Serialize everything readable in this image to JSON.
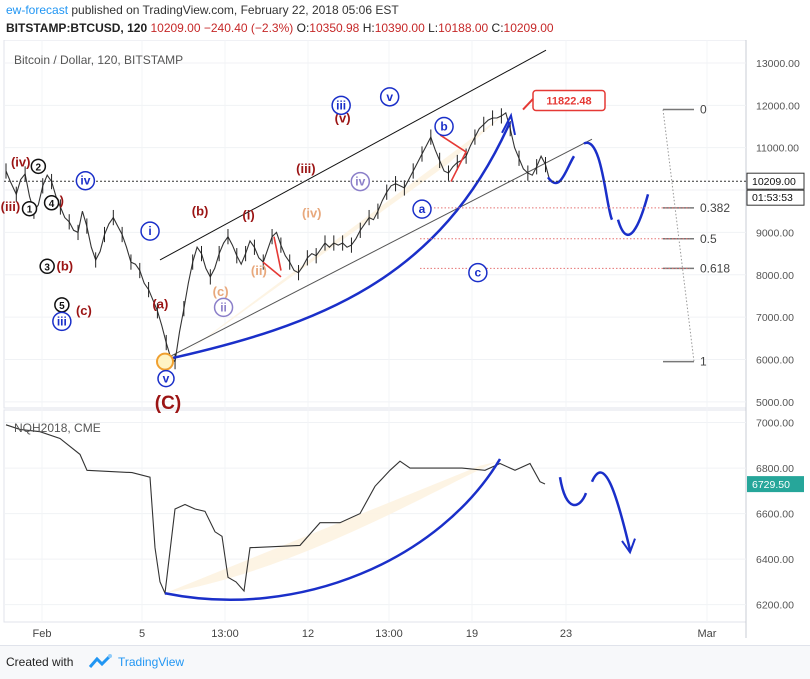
{
  "header": {
    "author": "ew-forecast",
    "published_text": " published on TradingView.com, February 22, 2018 05:06 EST",
    "symbol": "BITSTAMP:BTCUSD, 120",
    "last": "10209.00",
    "change": "−240.40 (−2.3%)",
    "o_label": "O:",
    "o_value": "10350.98",
    "h_label": "H:",
    "h_value": "10390.00",
    "l_label": "L:",
    "l_value": "10188.00",
    "c_label": "C:",
    "c_value": "10209.00"
  },
  "footer": {
    "created_label": "Created with",
    "brand": "TradingView"
  },
  "colors": {
    "wave_blue": "#1a2fc9",
    "wave_red": "#9b1414",
    "wave_orange": "#e8a87c",
    "wave_purple": "#8b7fc9",
    "target_red": "#e53935",
    "fill": "#fdf3e1"
  },
  "chart_data": [
    {
      "type": "line",
      "title": "Bitcoin / Dollar, 120, BITSTAMP",
      "y_ticks": [
        "13000.00",
        "12000.00",
        "11000.00",
        "10000.00",
        "9000.00",
        "8000.00",
        "7000.00",
        "6000.00",
        "5000.00"
      ],
      "y_tick_values": [
        13000,
        12000,
        11000,
        10000,
        9000,
        8000,
        7000,
        6000,
        5000
      ],
      "ylim": [
        4950,
        13400
      ],
      "x_ticks": [
        "Feb",
        "5",
        "13:00",
        "12",
        "13:00",
        "19",
        "23",
        "Mar"
      ],
      "last_price_label": "10209.00",
      "countdown_label": "01:53:53",
      "last_price": 10209,
      "target_label": "11822.48",
      "target_value": 11822.48,
      "price_path": [
        [
          0,
          10450
        ],
        [
          3,
          10200
        ],
        [
          7,
          9900
        ],
        [
          10,
          10250
        ],
        [
          13,
          10380
        ],
        [
          16,
          9850
        ],
        [
          19,
          9500
        ],
        [
          22,
          9650
        ],
        [
          25,
          10100
        ],
        [
          28,
          10350
        ],
        [
          31,
          10200
        ],
        [
          34,
          9850
        ],
        [
          37,
          9600
        ],
        [
          40,
          9350
        ],
        [
          43,
          9250
        ],
        [
          46,
          9050
        ],
        [
          49,
          9000
        ],
        [
          52,
          9500
        ],
        [
          55,
          9150
        ],
        [
          58,
          8650
        ],
        [
          61,
          8350
        ],
        [
          64,
          8550
        ],
        [
          67,
          8950
        ],
        [
          70,
          9200
        ],
        [
          73,
          9350
        ],
        [
          76,
          9150
        ],
        [
          79,
          8950
        ],
        [
          82,
          8650
        ],
        [
          85,
          8300
        ],
        [
          88,
          8250
        ],
        [
          91,
          8100
        ],
        [
          94,
          7800
        ],
        [
          97,
          7650
        ],
        [
          100,
          7400
        ],
        [
          103,
          7150
        ],
        [
          106,
          6800
        ],
        [
          109,
          6400
        ],
        [
          112,
          6050
        ],
        [
          115,
          5950
        ],
        [
          118,
          6650
        ],
        [
          121,
          7200
        ],
        [
          124,
          7800
        ],
        [
          127,
          8300
        ],
        [
          130,
          8650
        ],
        [
          133,
          8500
        ],
        [
          136,
          8150
        ],
        [
          139,
          7950
        ],
        [
          142,
          8150
        ],
        [
          145,
          8500
        ],
        [
          148,
          8750
        ],
        [
          151,
          8900
        ],
        [
          154,
          8700
        ],
        [
          157,
          8450
        ],
        [
          160,
          8250
        ],
        [
          163,
          8500
        ],
        [
          166,
          8800
        ],
        [
          169,
          8650
        ],
        [
          172,
          8400
        ],
        [
          175,
          8300
        ],
        [
          178,
          8600
        ],
        [
          181,
          8900
        ],
        [
          184,
          9000
        ],
        [
          187,
          8700
        ],
        [
          190,
          8450
        ],
        [
          193,
          8300
        ],
        [
          196,
          8100
        ],
        [
          199,
          8050
        ],
        [
          202,
          8200
        ],
        [
          205,
          8400
        ],
        [
          208,
          8500
        ],
        [
          211,
          8450
        ],
        [
          214,
          8600
        ],
        [
          217,
          8750
        ],
        [
          220,
          8650
        ],
        [
          223,
          8750
        ],
        [
          226,
          8700
        ],
        [
          229,
          8750
        ],
        [
          232,
          8650
        ],
        [
          235,
          8700
        ],
        [
          238,
          8850
        ],
        [
          241,
          9050
        ],
        [
          244,
          9200
        ],
        [
          247,
          9350
        ],
        [
          250,
          9300
        ],
        [
          253,
          9500
        ],
        [
          256,
          9750
        ],
        [
          259,
          9950
        ],
        [
          262,
          10100
        ],
        [
          265,
          10150
        ],
        [
          268,
          10100
        ],
        [
          271,
          10050
        ],
        [
          274,
          10250
        ],
        [
          277,
          10450
        ],
        [
          280,
          10650
        ],
        [
          283,
          10850
        ],
        [
          286,
          11050
        ],
        [
          289,
          11250
        ],
        [
          292,
          10950
        ],
        [
          295,
          10700
        ],
        [
          298,
          10450
        ],
        [
          301,
          10400
        ],
        [
          304,
          10550
        ],
        [
          307,
          10650
        ],
        [
          310,
          10700
        ],
        [
          313,
          10800
        ],
        [
          316,
          11050
        ],
        [
          319,
          11250
        ],
        [
          322,
          11450
        ],
        [
          325,
          11550
        ],
        [
          328,
          11650
        ],
        [
          331,
          11700
        ],
        [
          334,
          11700
        ],
        [
          337,
          11750
        ],
        [
          340,
          11822
        ],
        [
          343,
          11450
        ],
        [
          346,
          11000
        ],
        [
          349,
          10750
        ],
        [
          352,
          10500
        ],
        [
          355,
          10400
        ],
        [
          358,
          10350
        ],
        [
          361,
          10550
        ],
        [
          364,
          10800
        ],
        [
          367,
          10600
        ],
        [
          370,
          10209
        ]
      ],
      "series_markers": [
        {
          "text": "(iv)",
          "x": 10,
          "y": 10550,
          "color": "wave_red",
          "weight": "bold"
        },
        {
          "text": "(iii)",
          "x": 3,
          "y": 9500,
          "color": "wave_red",
          "weight": "bold"
        },
        {
          "text": "(a)",
          "x": 34,
          "y": 9650,
          "color": "wave_red",
          "weight": "bold"
        },
        {
          "text": "(b)",
          "x": 40,
          "y": 8100,
          "color": "wave_red",
          "weight": "bold"
        },
        {
          "text": "(a)",
          "x": 105,
          "y": 7200,
          "color": "wave_red",
          "weight": "bold"
        },
        {
          "text": "(b)",
          "x": 132,
          "y": 9400,
          "color": "wave_red",
          "weight": "bold"
        },
        {
          "text": "(i)",
          "x": 165,
          "y": 9300,
          "color": "wave_red",
          "weight": "bold"
        },
        {
          "text": "(iii)",
          "x": 204,
          "y": 10400,
          "color": "wave_red",
          "weight": "bold"
        },
        {
          "text": "(v)",
          "x": 229,
          "y": 11600,
          "color": "wave_red",
          "weight": "bold"
        },
        {
          "text": "(c)",
          "x": 146,
          "y": 7500,
          "color": "wave_orange",
          "weight": "bold"
        },
        {
          "text": "(ii)",
          "x": 172,
          "y": 8000,
          "color": "wave_orange",
          "weight": "bold"
        },
        {
          "text": "(iv)",
          "x": 208,
          "y": 9350,
          "color": "wave_orange",
          "weight": "bold"
        },
        {
          "text": "(c)",
          "x": 53,
          "y": 7050,
          "color": "wave_red",
          "weight": "bold"
        }
      ],
      "circle_markers": [
        {
          "text": "2",
          "x": 22,
          "y": 10560,
          "color": "#111",
          "size": 7
        },
        {
          "text": "1",
          "x": 16,
          "y": 9560,
          "color": "#111",
          "size": 7
        },
        {
          "text": "4",
          "x": 31,
          "y": 9700,
          "color": "#111",
          "size": 7
        },
        {
          "text": "3",
          "x": 28,
          "y": 8200,
          "color": "#111",
          "size": 7
        },
        {
          "text": "5",
          "x": 38,
          "y": 7290,
          "color": "#111",
          "size": 7
        },
        {
          "text": "iv",
          "x": 54,
          "y": 10220,
          "color": "wave_blue",
          "size": 9
        },
        {
          "text": "iii",
          "x": 38,
          "y": 6900,
          "color": "wave_blue",
          "size": 9
        },
        {
          "text": "i",
          "x": 98,
          "y": 9030,
          "color": "wave_blue",
          "size": 9
        },
        {
          "text": "ii",
          "x": 148,
          "y": 7230,
          "color": "wave_purple",
          "size": 9
        },
        {
          "text": "iii",
          "x": 228,
          "y": 12000,
          "color": "wave_blue",
          "size": 9
        },
        {
          "text": "iv",
          "x": 241,
          "y": 10200,
          "color": "wave_purple",
          "size": 9
        },
        {
          "text": "v",
          "x": 261,
          "y": 12200,
          "color": "wave_blue",
          "size": 9
        },
        {
          "text": "b",
          "x": 298,
          "y": 11500,
          "color": "wave_blue",
          "size": 9
        },
        {
          "text": "a",
          "x": 283,
          "y": 9550,
          "color": "wave_blue",
          "size": 9
        },
        {
          "text": "c",
          "x": 321,
          "y": 8050,
          "color": "wave_blue",
          "size": 9
        }
      ],
      "fib_levels": [
        {
          "label": "0",
          "value": 11900
        },
        {
          "label": "0.382",
          "value": 9580
        },
        {
          "label": "0.5",
          "value": 8850
        },
        {
          "label": "0.618",
          "value": 8150
        },
        {
          "label": "1",
          "value": 5950
        }
      ],
      "main_label": "(C)",
      "main_label_v": "v"
    },
    {
      "type": "line",
      "title": "NQH2018, CME",
      "y_ticks": [
        "7000.00",
        "6800.00",
        "6600.00",
        "6400.00",
        "6200.00"
      ],
      "y_tick_values": [
        7000,
        6800,
        6600,
        6400,
        6200
      ],
      "ylim": [
        6150,
        7020
      ],
      "last_price_label": "6729.50",
      "last_price": 6729.5
    }
  ]
}
